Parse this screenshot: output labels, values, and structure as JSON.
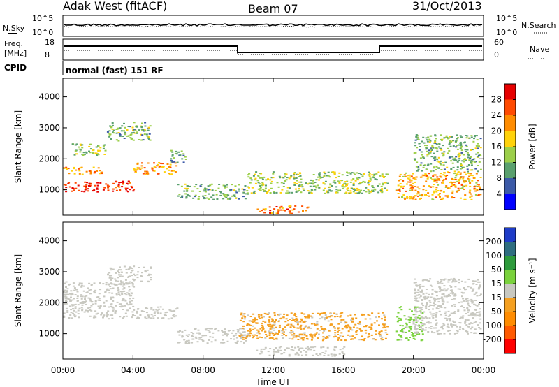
{
  "header": {
    "station": "Adak West (fitACF)",
    "beam": "Beam 07",
    "date": "31/Oct/2013"
  },
  "small_panels": {
    "nsky_label": "N.Sky",
    "nsearch_label": "N.Search",
    "freq_label_line1": "Freq.",
    "freq_label_line2": "[MHz]",
    "nave_label": "Nave",
    "cpid_label": "CPID",
    "cpid_text": "normal (fast) 151 RF",
    "noise_ticks": [
      "10^5",
      "10^0"
    ],
    "freq_ticks": [
      "18",
      "8"
    ],
    "nave_ticks": [
      "60",
      "0"
    ]
  },
  "colors": {
    "power": [
      "#0000ff",
      "#3c5aa8",
      "#5aa06e",
      "#9ccf4a",
      "#ffd20a",
      "#ff8c00",
      "#ff4a00",
      "#e60000"
    ],
    "velocity": [
      "#ff0000",
      "#ff5a00",
      "#ff8c00",
      "#f5a020",
      "#c8c8c0",
      "#7ad23c",
      "#2e9b3c",
      "#2f6e80",
      "#1e3cc8"
    ]
  },
  "chart_data": [
    {
      "type": "heatmap",
      "name": "power",
      "ylabel": "Slant Range [km]",
      "colorbar_label": "Power [dB]",
      "colorbar_ticks": [
        "4",
        "8",
        "12",
        "16",
        "20",
        "24",
        "28"
      ],
      "colorbar_range": [
        0,
        32
      ],
      "x_ticks": [
        "00:00",
        "04:00",
        "08:00",
        "12:00",
        "16:00",
        "20:00",
        "00:00"
      ],
      "xlim_hours": [
        0,
        24
      ],
      "y_ticks": [
        "1000",
        "2000",
        "3000",
        "4000"
      ],
      "ylim_km": [
        180,
        4600
      ],
      "scatter_regions": [
        {
          "t": [
            0.0,
            2.2
          ],
          "r": [
            1500,
            1750
          ],
          "v": 22
        },
        {
          "t": [
            0.0,
            4.0
          ],
          "r": [
            950,
            1300
          ],
          "v": 28
        },
        {
          "t": [
            0.5,
            2.5
          ],
          "r": [
            2100,
            2500
          ],
          "v": 14
        },
        {
          "t": [
            2.5,
            5.0
          ],
          "r": [
            2600,
            3200
          ],
          "v": 12
        },
        {
          "t": [
            4.0,
            6.5
          ],
          "r": [
            1500,
            1900
          ],
          "v": 22
        },
        {
          "t": [
            6.0,
            7.0
          ],
          "r": [
            1900,
            2300
          ],
          "v": 10
        },
        {
          "t": [
            6.5,
            10.5
          ],
          "r": [
            700,
            1200
          ],
          "v": 12
        },
        {
          "t": [
            10.5,
            18.5
          ],
          "r": [
            900,
            1600
          ],
          "v": 14
        },
        {
          "t": [
            11.0,
            14.0
          ],
          "r": [
            250,
            500
          ],
          "v": 24
        },
        {
          "t": [
            19.0,
            23.8
          ],
          "r": [
            700,
            1600
          ],
          "v": 20
        },
        {
          "t": [
            20.0,
            23.8
          ],
          "r": [
            1600,
            2800
          ],
          "v": 12
        }
      ]
    },
    {
      "type": "heatmap",
      "name": "velocity",
      "ylabel": "Slant Range [km]",
      "xlabel": "Time UT",
      "colorbar_label": "Velocity [m s⁻¹]",
      "colorbar_ticks": [
        "-200",
        "-100",
        "-50",
        "-15",
        "15",
        "50",
        "100",
        "200"
      ],
      "colorbar_range": [
        -250,
        250
      ],
      "x_ticks": [
        "00:00",
        "04:00",
        "08:00",
        "12:00",
        "16:00",
        "20:00",
        "00:00"
      ],
      "xlim_hours": [
        0,
        24
      ],
      "y_ticks": [
        "1000",
        "2000",
        "3000",
        "4000"
      ],
      "ylim_km": [
        180,
        4600
      ],
      "scatter_regions": [
        {
          "t": [
            0.0,
            4.0
          ],
          "r": [
            1500,
            2700
          ],
          "v": 0
        },
        {
          "t": [
            2.5,
            5.0
          ],
          "r": [
            2600,
            3200
          ],
          "v": 0
        },
        {
          "t": [
            4.0,
            6.5
          ],
          "r": [
            1500,
            1900
          ],
          "v": 0
        },
        {
          "t": [
            6.5,
            10.5
          ],
          "r": [
            700,
            1200
          ],
          "v": 0
        },
        {
          "t": [
            10.0,
            18.5
          ],
          "r": [
            800,
            1700
          ],
          "v": -40
        },
        {
          "t": [
            11.0,
            16.0
          ],
          "r": [
            300,
            600
          ],
          "v": 0
        },
        {
          "t": [
            19.0,
            20.5
          ],
          "r": [
            800,
            1900
          ],
          "v": 40
        },
        {
          "t": [
            20.0,
            23.8
          ],
          "r": [
            1000,
            2800
          ],
          "v": 0
        }
      ]
    }
  ]
}
